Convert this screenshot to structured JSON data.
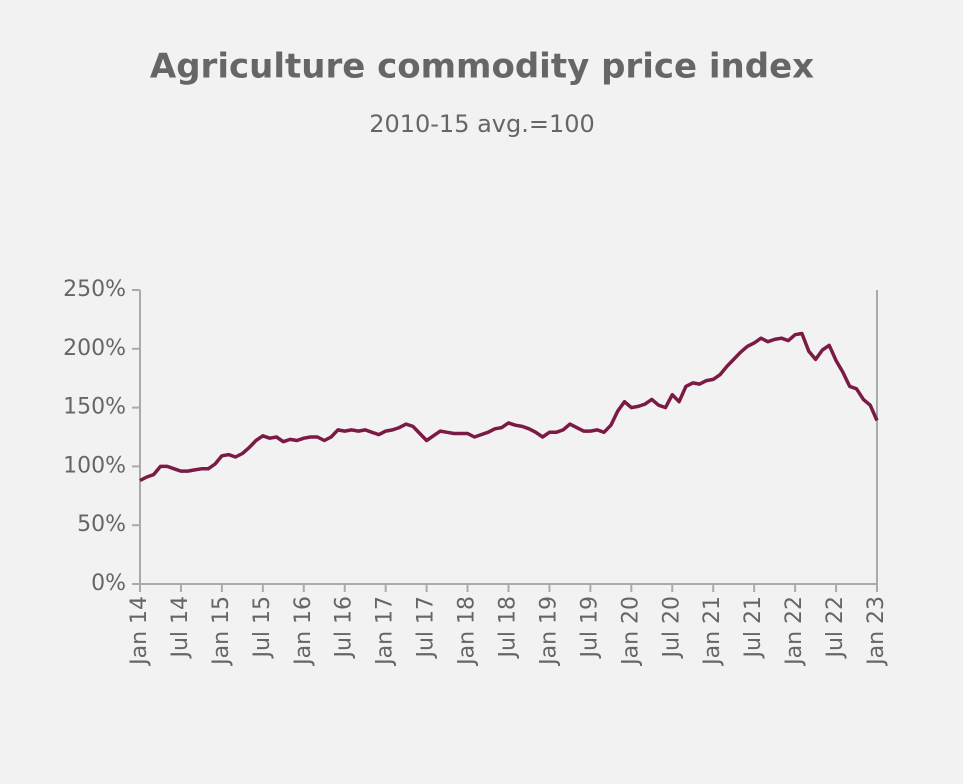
{
  "chart_data": {
    "type": "line",
    "title": "Agriculture commodity price index",
    "subtitle": "2010-15 avg.=100",
    "categories": [
      "Jan 14",
      null,
      null,
      null,
      null,
      null,
      "Jul 14",
      null,
      null,
      null,
      null,
      null,
      "Jan 15",
      null,
      null,
      null,
      null,
      null,
      "Jul 15",
      null,
      null,
      null,
      null,
      null,
      "Jan 16",
      null,
      null,
      null,
      null,
      null,
      "Jul 16",
      null,
      null,
      null,
      null,
      null,
      "Jan 17",
      null,
      null,
      null,
      null,
      null,
      "Jul 17",
      null,
      null,
      null,
      null,
      null,
      "Jan 18",
      null,
      null,
      null,
      null,
      null,
      "Jul 18",
      null,
      null,
      null,
      null,
      null,
      "Jan 19",
      null,
      null,
      null,
      null,
      null,
      "Jul 19",
      null,
      null,
      null,
      null,
      null,
      "Jan 20",
      null,
      null,
      null,
      null,
      null,
      "Jul 20",
      null,
      null,
      null,
      null,
      null,
      "Jan 21",
      null,
      null,
      null,
      null,
      null,
      "Jul 21",
      null,
      null,
      null,
      null,
      null,
      "Jan 22",
      null,
      null,
      null,
      null,
      null,
      "Jul 22",
      null,
      null,
      null,
      null,
      null,
      "Jan 23"
    ],
    "values": [
      88,
      91,
      93,
      100,
      100,
      98,
      96,
      96,
      97,
      98,
      98,
      102,
      109,
      110,
      108,
      111,
      116,
      122,
      126,
      124,
      125,
      121,
      123,
      122,
      124,
      125,
      125,
      122,
      125,
      131,
      130,
      131,
      130,
      131,
      129,
      127,
      130,
      131,
      133,
      136,
      134,
      128,
      122,
      126,
      130,
      129,
      128,
      128,
      128,
      125,
      127,
      129,
      132,
      133,
      137,
      135,
      134,
      132,
      129,
      125,
      129,
      129,
      131,
      136,
      133,
      130,
      130,
      131,
      129,
      135,
      147,
      155,
      150,
      151,
      153,
      157,
      152,
      150,
      161,
      155,
      168,
      171,
      170,
      173,
      174,
      178,
      185,
      191,
      197,
      202,
      205,
      209,
      206,
      208,
      209,
      207,
      212,
      213,
      198,
      191,
      199,
      203,
      190,
      180,
      168,
      166,
      157,
      152,
      139
    ],
    "color": "#7a1a45",
    "ylim": [
      0,
      250
    ],
    "yticks": [
      {
        "value": 0,
        "label": "0%"
      },
      {
        "value": 50,
        "label": "50%"
      },
      {
        "value": 100,
        "label": "100%"
      },
      {
        "value": 150,
        "label": "150%"
      },
      {
        "value": 200,
        "label": "200%"
      },
      {
        "value": 250,
        "label": "250%"
      }
    ]
  }
}
